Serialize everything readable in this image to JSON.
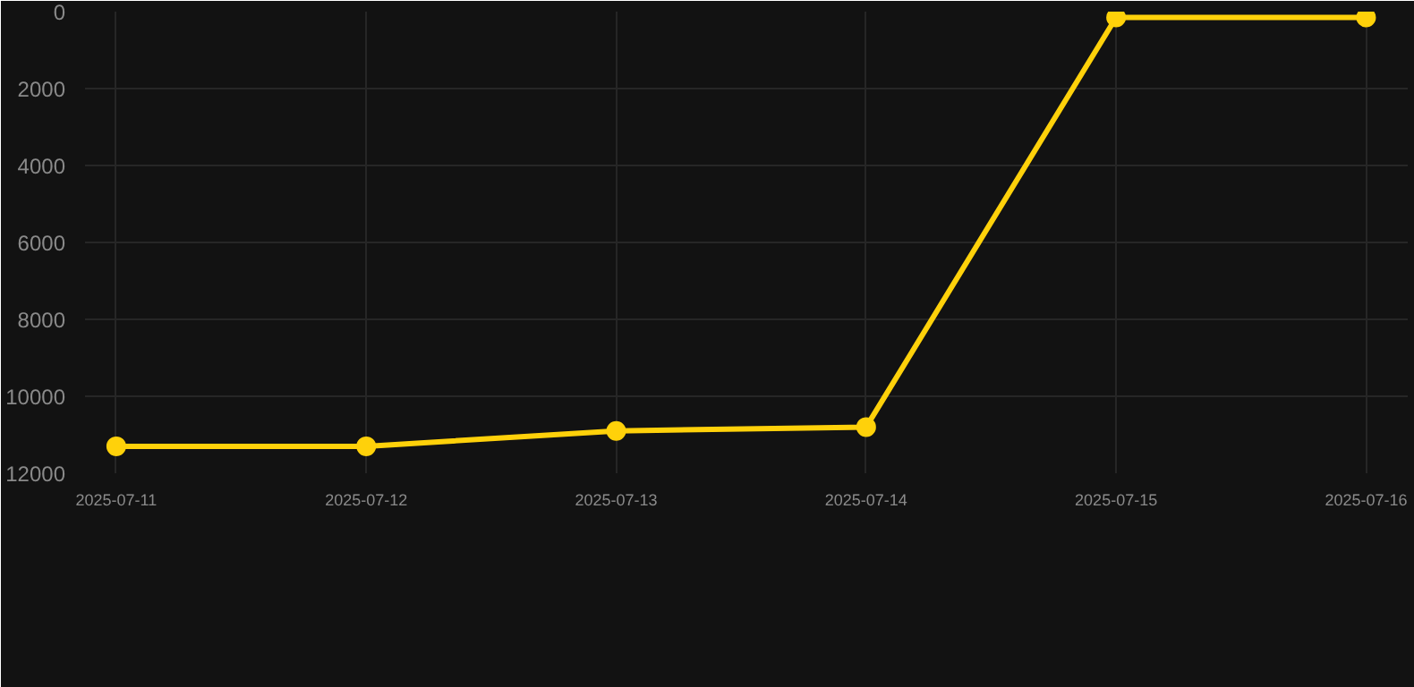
{
  "chart_data": {
    "type": "line",
    "x": [
      "2025-07-11",
      "2025-07-12",
      "2025-07-13",
      "2025-07-14",
      "2025-07-15",
      "2025-07-16"
    ],
    "series": [
      {
        "color": "#ffd10a",
        "values": [
          11300,
          11300,
          10900,
          10800,
          150,
          150
        ]
      }
    ],
    "xlim": [
      "2025-07-10T21:00",
      "2025-07-16T04:00"
    ],
    "xticks": [
      "2025-07-11",
      "2025-07-12",
      "2025-07-13",
      "2025-07-14",
      "2025-07-15",
      "2025-07-16"
    ],
    "ylim": [
      12000,
      0
    ],
    "yticks": [
      0,
      2000,
      4000,
      6000,
      8000,
      10000,
      12000
    ],
    "grid": true,
    "marker": "circle",
    "line_style": "solid"
  }
}
